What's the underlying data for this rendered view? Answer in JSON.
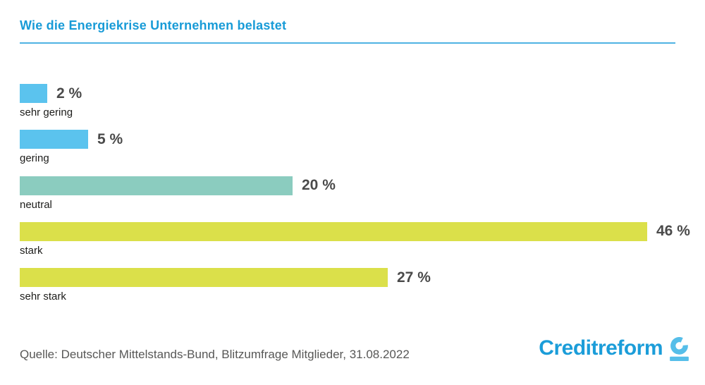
{
  "title": "Wie die Energiekrise Unternehmen belastet",
  "source": "Quelle: Deutscher Mittelstands-Bund, Blitzumfrage Mitglieder, 31.08.2022",
  "logo": {
    "text": "Creditreform",
    "icon": "creditreform-c-icon"
  },
  "colors": {
    "title_blue": "#189BD7",
    "divider_blue": "#4FB3E3",
    "bar_blue": "#5BC3EE",
    "bar_teal": "#8BCCBF",
    "bar_yellow": "#DBE04A",
    "value_text": "#4A4A4A",
    "category_text": "#1D1D1B",
    "source_text": "#575756",
    "logo_blue": "#1B9DD9",
    "logo_icon_blue": "#56BEE9"
  },
  "chart_data": {
    "type": "bar",
    "orientation": "horizontal",
    "title": "Wie die Energiekrise Unternehmen belastet",
    "categories": [
      "sehr gering",
      "gering",
      "neutral",
      "stark",
      "sehr stark"
    ],
    "values": [
      2,
      5,
      20,
      46,
      27
    ],
    "value_labels": [
      "2 %",
      "5 %",
      "20 %",
      "46 %",
      "27 %"
    ],
    "unit": "%",
    "xlim": [
      0,
      46
    ],
    "bar_colors": [
      "#5BC3EE",
      "#5BC3EE",
      "#8BCCBF",
      "#DBE04A",
      "#DBE04A"
    ],
    "grid": false,
    "legend": false,
    "source": "Quelle: Deutscher Mittelstands-Bund, Blitzumfrage Mitglieder, 31.08.2022"
  }
}
